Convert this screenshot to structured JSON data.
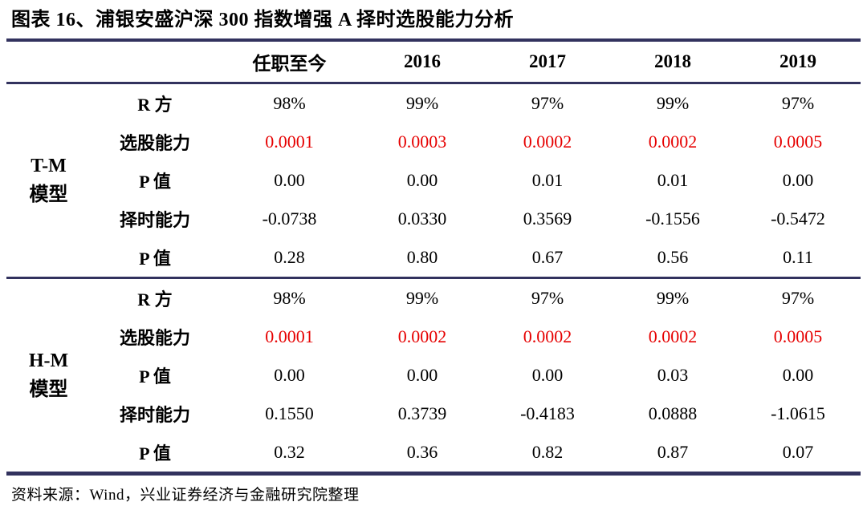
{
  "title": "图表 16、浦银安盛沪深 300 指数增强 A 择时选股能力分析",
  "columns": [
    "任职至今",
    "2016",
    "2017",
    "2018",
    "2019"
  ],
  "sections": [
    {
      "model": [
        "T-M",
        "模型"
      ],
      "rows": [
        {
          "label": "R 方",
          "values": [
            "98%",
            "99%",
            "97%",
            "99%",
            "97%"
          ]
        },
        {
          "label": "选股能力",
          "values": [
            "0.0001",
            "0.0003",
            "0.0002",
            "0.0002",
            "0.0005"
          ]
        },
        {
          "label": "P 值",
          "values": [
            "0.00",
            "0.00",
            "0.01",
            "0.01",
            "0.00"
          ]
        },
        {
          "label": "择时能力",
          "values": [
            "-0.0738",
            "0.0330",
            "0.3569",
            "-0.1556",
            "-0.5472"
          ]
        },
        {
          "label": "P 值",
          "values": [
            "0.28",
            "0.80",
            "0.67",
            "0.56",
            "0.11"
          ]
        }
      ]
    },
    {
      "model": [
        "H-M",
        "模型"
      ],
      "rows": [
        {
          "label": "R 方",
          "values": [
            "98%",
            "99%",
            "97%",
            "99%",
            "97%"
          ]
        },
        {
          "label": "选股能力",
          "values": [
            "0.0001",
            "0.0002",
            "0.0002",
            "0.0002",
            "0.0005"
          ]
        },
        {
          "label": "P 值",
          "values": [
            "0.00",
            "0.00",
            "0.00",
            "0.03",
            "0.00"
          ]
        },
        {
          "label": "择时能力",
          "values": [
            "0.1550",
            "0.3739",
            "-0.4183",
            "0.0888",
            "-1.0615"
          ]
        },
        {
          "label": "P 值",
          "values": [
            "0.32",
            "0.36",
            "0.82",
            "0.87",
            "0.07"
          ]
        }
      ]
    }
  ],
  "footer": "资料来源：Wind，兴业证券经济与金融研究院整理",
  "colors": {
    "line": "#32325e",
    "red": "#e60000",
    "text": "#000000"
  }
}
